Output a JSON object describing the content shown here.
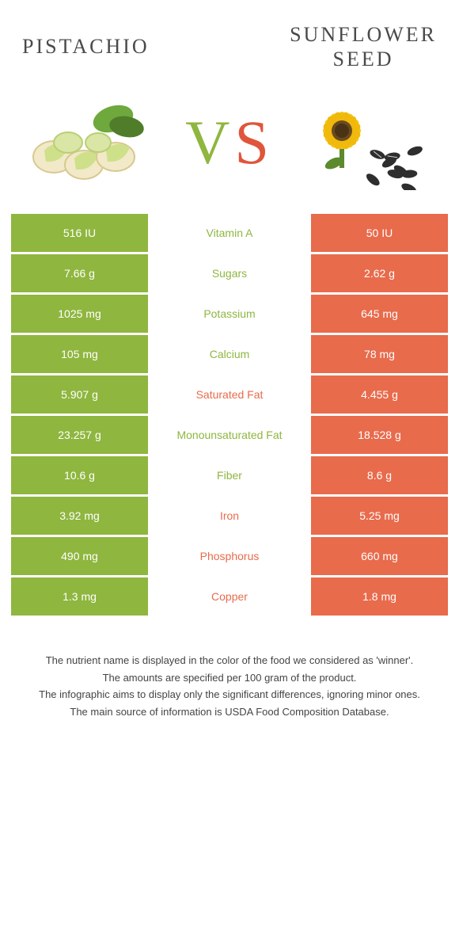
{
  "header": {
    "left_title": "Pistachio",
    "right_title_line1": "Sunflower",
    "right_title_line2": "seed"
  },
  "vs": {
    "v": "V",
    "s": "S"
  },
  "colors": {
    "green": "#8fb63f",
    "orange": "#e86b4c",
    "text": "#4a4a4a",
    "bg": "#ffffff"
  },
  "table": {
    "left_color": "#8fb63f",
    "right_color": "#e86b4c",
    "rows": [
      {
        "left": "516 IU",
        "mid": "Vitamin A",
        "right": "50 IU",
        "winner": "green"
      },
      {
        "left": "7.66 g",
        "mid": "Sugars",
        "right": "2.62 g",
        "winner": "green"
      },
      {
        "left": "1025 mg",
        "mid": "Potassium",
        "right": "645 mg",
        "winner": "green"
      },
      {
        "left": "105 mg",
        "mid": "Calcium",
        "right": "78 mg",
        "winner": "green"
      },
      {
        "left": "5.907 g",
        "mid": "Saturated Fat",
        "right": "4.455 g",
        "winner": "orange"
      },
      {
        "left": "23.257 g",
        "mid": "Monounsaturated Fat",
        "right": "18.528 g",
        "winner": "green"
      },
      {
        "left": "10.6 g",
        "mid": "Fiber",
        "right": "8.6 g",
        "winner": "green"
      },
      {
        "left": "3.92 mg",
        "mid": "Iron",
        "right": "5.25 mg",
        "winner": "orange"
      },
      {
        "left": "490 mg",
        "mid": "Phosphorus",
        "right": "660 mg",
        "winner": "orange"
      },
      {
        "left": "1.3 mg",
        "mid": "Copper",
        "right": "1.8 mg",
        "winner": "orange"
      }
    ]
  },
  "footer": {
    "line1": "The nutrient name is displayed in the color of the food we considered as 'winner'.",
    "line2": "The amounts are specified per 100 gram of the product.",
    "line3": "The infographic aims to display only the significant differences, ignoring minor ones.",
    "line4": "The main source of information is USDA Food Composition Database."
  },
  "illustrations": {
    "pistachio": {
      "nut_fill": "#d9e6a6",
      "nut_stroke": "#b9cf73",
      "leaf_fill": "#6fa83c",
      "leaf_dark": "#4f7d2a"
    },
    "sunflower": {
      "petal_fill": "#f6c514",
      "center_fill": "#6b4a1f",
      "seed_fill": "#2e2e2e",
      "seed_stripe": "#cfcfcf",
      "stem_fill": "#5c8a2d"
    }
  }
}
